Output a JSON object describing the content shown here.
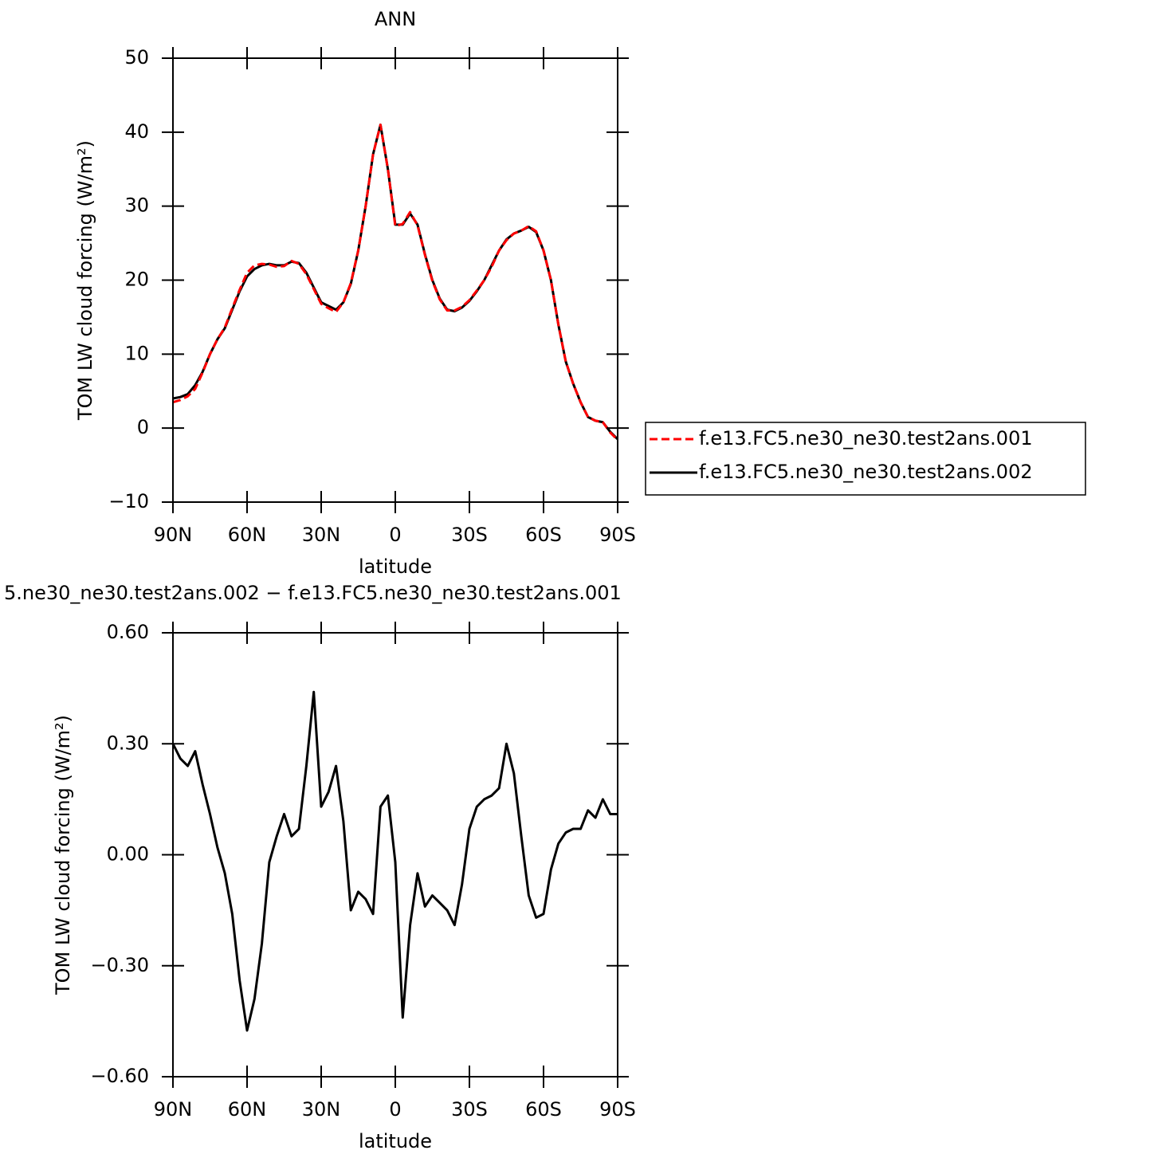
{
  "chart_data": [
    {
      "type": "line",
      "title": "ANN",
      "x_label": "latitude",
      "y_label": "TOM LW cloud forcing (W/m²)",
      "x": [
        90,
        87,
        84,
        81,
        78,
        75,
        72,
        69,
        66,
        63,
        60,
        57,
        54,
        51,
        48,
        45,
        42,
        39,
        36,
        33,
        30,
        27,
        24,
        21,
        18,
        15,
        12,
        9,
        6,
        3,
        0,
        -3,
        -6,
        -9,
        -12,
        -15,
        -18,
        -21,
        -24,
        -27,
        -30,
        -33,
        -36,
        -39,
        -42,
        -45,
        -48,
        -51,
        -54,
        -57,
        -60,
        -63,
        -66,
        -69,
        -72,
        -75,
        -78,
        -81,
        -84,
        -87,
        -90
      ],
      "xlim": [
        90,
        -90
      ],
      "xticks": [
        {
          "value": 90,
          "label": "90N"
        },
        {
          "value": 60,
          "label": "60N"
        },
        {
          "value": 30,
          "label": "30N"
        },
        0,
        {
          "value": -30,
          "label": "30S"
        },
        {
          "value": -60,
          "label": "60S"
        },
        {
          "value": -90,
          "label": "90S"
        }
      ],
      "ylim": [
        -10,
        50
      ],
      "yticks": [
        {
          "value": -10,
          "label": "−10"
        },
        0,
        10,
        20,
        30,
        40,
        50
      ],
      "legend": "right",
      "series": [
        {
          "name": "f.e13.FC5.ne30_ne30.test2ans.001",
          "color": "#ff0000",
          "style": "dashed",
          "values": [
            3.5,
            3.8,
            4.3,
            5.3,
            7.5,
            10,
            12,
            13.6,
            16.2,
            18.7,
            21,
            22,
            22.2,
            22.1,
            21.8,
            21.9,
            22.6,
            22.2,
            20.8,
            18.8,
            16.8,
            16.2,
            15.7,
            17,
            19.6,
            24,
            30,
            37,
            41,
            35,
            27.3,
            27.6,
            29.2,
            27.4,
            23.4,
            19.9,
            17.4,
            15.9,
            15.9,
            16.4,
            17.3,
            18.6,
            20,
            21.8,
            24,
            25.4,
            26.3,
            26.7,
            27.3,
            26.6,
            24,
            20,
            14,
            9,
            6,
            3.5,
            1.5,
            1.0,
            0.8,
            -0.6,
            -1.6
          ]
        },
        {
          "name": "f.e13.FC5.ne30_ne30.test2ans.002",
          "color": "#000000",
          "style": "solid",
          "values": [
            4.0,
            4.2,
            4.6,
            5.8,
            7.6,
            10,
            12,
            13.5,
            16,
            18.5,
            20.5,
            21.5,
            22,
            22.2,
            22,
            22,
            22.5,
            22.3,
            21,
            19,
            17,
            16.5,
            16,
            17,
            19.5,
            24,
            30,
            37,
            41,
            35,
            27.5,
            27.5,
            29,
            27.5,
            23.5,
            20,
            17.5,
            16,
            15.8,
            16.3,
            17.2,
            18.5,
            20,
            22,
            24,
            25.5,
            26.3,
            26.7,
            27.2,
            26.5,
            24,
            20,
            14,
            9,
            6,
            3.5,
            1.5,
            1.0,
            0.8,
            -0.5,
            -1.5
          ]
        }
      ]
    },
    {
      "type": "line",
      "title": "5.ne30_ne30.test2ans.002 − f.e13.FC5.ne30_ne30.test2ans.001",
      "x_label": "latitude",
      "y_label": "TOM LW cloud forcing (W/m²)",
      "x": [
        90,
        87,
        84,
        81,
        78,
        75,
        72,
        69,
        66,
        63,
        60,
        57,
        54,
        51,
        48,
        45,
        42,
        39,
        36,
        33,
        30,
        27,
        24,
        21,
        18,
        15,
        12,
        9,
        6,
        3,
        0,
        -3,
        -6,
        -9,
        -12,
        -15,
        -18,
        -21,
        -24,
        -27,
        -30,
        -33,
        -36,
        -39,
        -42,
        -45,
        -48,
        -51,
        -54,
        -57,
        -60,
        -63,
        -66,
        -69,
        -72,
        -75,
        -78,
        -81,
        -84,
        -87,
        -90
      ],
      "xlim": [
        90,
        -90
      ],
      "xticks": [
        {
          "value": 90,
          "label": "90N"
        },
        {
          "value": 60,
          "label": "60N"
        },
        {
          "value": 30,
          "label": "30N"
        },
        0,
        {
          "value": -30,
          "label": "30S"
        },
        {
          "value": -60,
          "label": "60S"
        },
        {
          "value": -90,
          "label": "90S"
        }
      ],
      "ylim": [
        -0.6,
        0.6
      ],
      "yticks": [
        {
          "value": -0.6,
          "label": "−0.60"
        },
        {
          "value": -0.3,
          "label": "−0.30"
        },
        {
          "value": 0,
          "label": "0.00"
        },
        {
          "value": 0.3,
          "label": "0.30"
        },
        {
          "value": 0.6,
          "label": "0.60"
        }
      ],
      "series": [
        {
          "color": "#000000",
          "style": "solid",
          "values": [
            0.3,
            0.26,
            0.24,
            0.28,
            0.19,
            0.11,
            0.02,
            -0.05,
            -0.16,
            -0.34,
            -0.475,
            -0.39,
            -0.24,
            -0.02,
            0.05,
            0.11,
            0.05,
            0.07,
            0.24,
            0.44,
            0.13,
            0.17,
            0.24,
            0.09,
            -0.15,
            -0.1,
            -0.12,
            -0.16,
            0.13,
            0.16,
            -0.02,
            -0.44,
            -0.19,
            -0.05,
            -0.14,
            -0.11,
            -0.13,
            -0.15,
            -0.19,
            -0.08,
            0.07,
            0.13,
            0.15,
            0.16,
            0.18,
            0.3,
            0.22,
            0.05,
            -0.11,
            -0.17,
            -0.16,
            -0.04,
            0.03,
            0.06,
            0.07,
            0.07,
            0.12,
            0.1,
            0.15,
            0.11,
            0.11
          ]
        }
      ]
    }
  ]
}
